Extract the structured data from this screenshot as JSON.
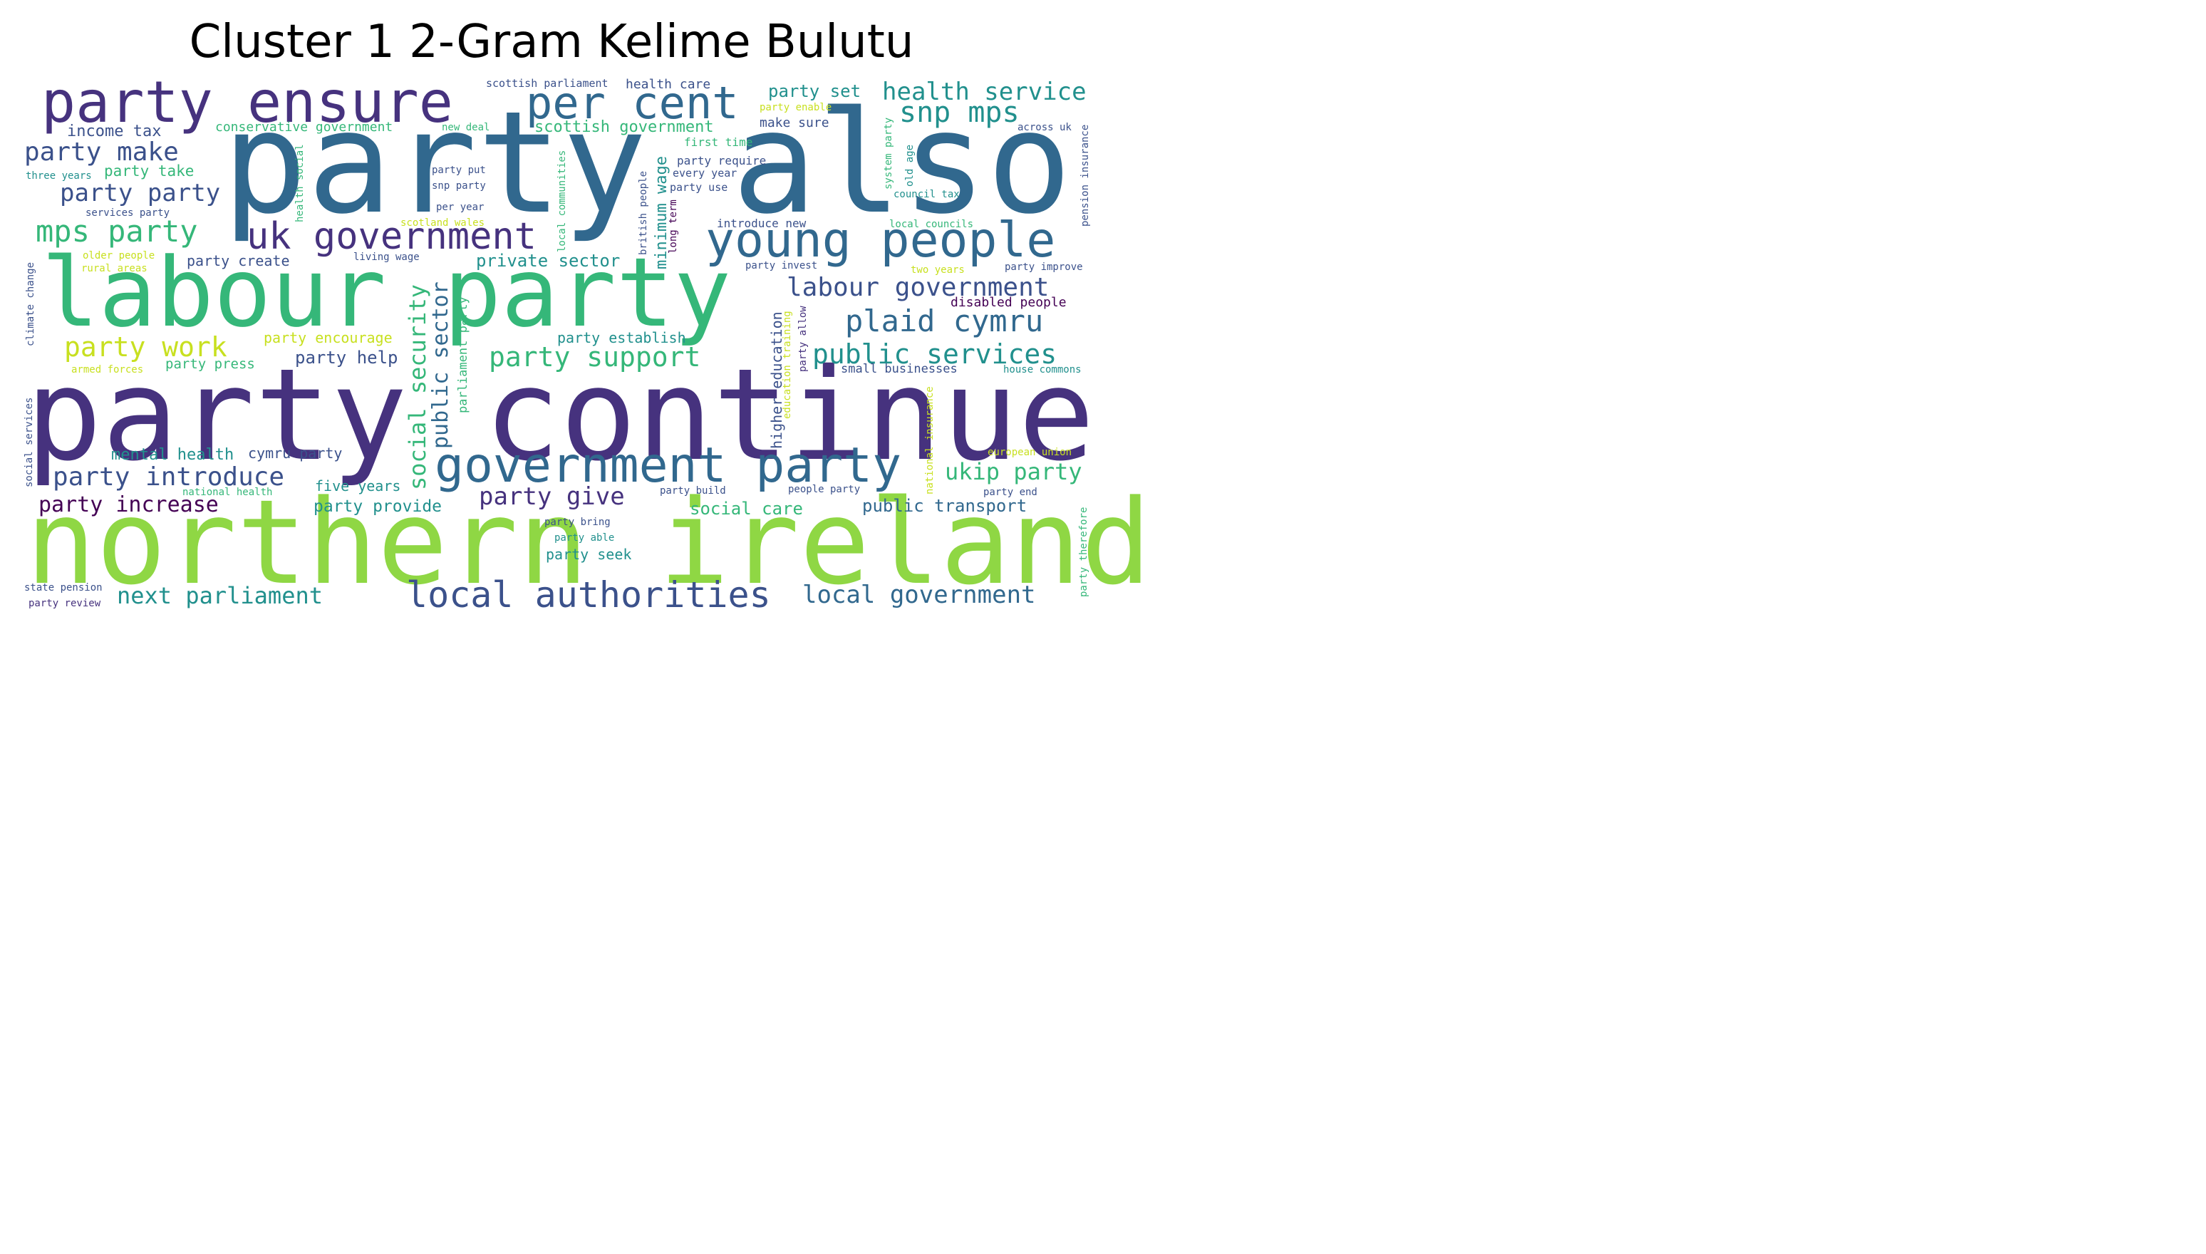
{
  "title": "Cluster 1 2-Gram Kelime Bulutu",
  "palette": {
    "purple": "#46327e",
    "indigo": "#3b518b",
    "blue": "#31688e",
    "teal": "#21908d",
    "green": "#35b779",
    "lime": "#8fd744",
    "yellow": "#c8e020",
    "dark": "#440154"
  },
  "words": {
    "party_also": "party also",
    "party_continue": "party continue",
    "northern_ireland": "northern ireland",
    "labour_party": "labour party",
    "party_ensure": "party ensure",
    "per_cent": "per cent",
    "young_people": "young people",
    "government_party": "government party",
    "uk_government": "uk government",
    "local_authorities": "local authorities",
    "snp_mps": "snp mps",
    "health_service": "health service",
    "party_make": "party make",
    "party_party": "party party",
    "mps_party": "mps party",
    "income_tax": "income tax",
    "conservative_government": "conservative government",
    "scottish_government": "scottish government",
    "scottish_parliament": "scottish parliament",
    "health_care": "health care",
    "party_set": "party set",
    "party_enable": "party enable",
    "new_deal": "new deal",
    "make_sure": "make sure",
    "across_uk": "across uk",
    "first_time": "first time",
    "party_require": "party require",
    "every_year": "every year",
    "party_use": "party use",
    "party_put": "party put",
    "snp_party": "snp party",
    "per_year": "per year",
    "party_take": "party take",
    "three_years": "three years",
    "services_party": "services party",
    "older_people": "older people",
    "rural_areas": "rural areas",
    "scotland_wales": "scotland wales",
    "living_wage": "living wage",
    "party_create": "party create",
    "private_sector": "private sector",
    "introduce_new": "introduce new",
    "local_councils": "local councils",
    "council_tax": "council tax",
    "party_invest": "party invest",
    "two_years": "two years",
    "party_improve": "party improve",
    "labour_government": "labour government",
    "disabled_people": "disabled people",
    "plaid_cymru": "plaid cymru",
    "public_services": "public services",
    "small_businesses": "small businesses",
    "house_commons": "house commons",
    "party_work": "party work",
    "party_encourage": "party encourage",
    "party_establish": "party establish",
    "party_support": "party support",
    "party_help": "party help",
    "party_press": "party press",
    "armed_forces": "armed forces",
    "mental_health": "mental health",
    "cymru_party": "cymru party",
    "party_introduce": "party introduce",
    "national_health": "national health",
    "five_years": "five years",
    "party_increase": "party increase",
    "party_provide": "party provide",
    "party_give": "party give",
    "party_build": "party build",
    "people_party": "people party",
    "party_end": "party end",
    "ukip_party": "ukip party",
    "european_union": "european union",
    "social_care": "social care",
    "public_transport": "public transport",
    "party_bring": "party bring",
    "party_able": "party able",
    "party_seek": "party seek",
    "next_parliament": "next parliament",
    "local_government": "local government",
    "state_pension": "state pension",
    "party_review": "party review",
    "climate_change": "climate change",
    "social_services": "social services",
    "social_security": "social security",
    "public_sector": "public sector",
    "parliament_party": "parliament party",
    "health_social": "health social",
    "local_communities": "local communities",
    "minimum_wage": "minimum wage",
    "long_term": "long term",
    "british_people": "british people",
    "system_party": "system party",
    "old_age": "old age",
    "pension_insurance": "pension insurance",
    "higher_education": "higher education",
    "education_training": "education training",
    "party_allow": "party allow",
    "national_insurance": "national insurance",
    "party_therefore": "party therefore"
  }
}
